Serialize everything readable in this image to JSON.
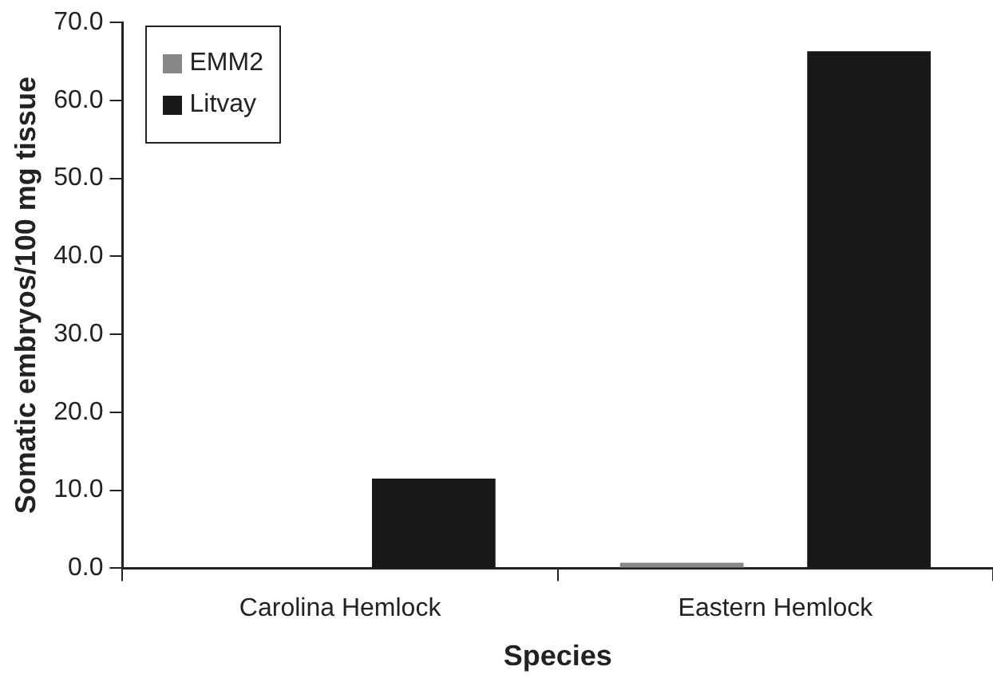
{
  "chart_data": {
    "type": "bar",
    "xlabel": "Species",
    "ylabel": "Somatic embryos/100 mg tissue",
    "categories": [
      "Carolina Hemlock",
      "Eastern Hemlock"
    ],
    "series": [
      {
        "name": "EMM2",
        "color": "#888888",
        "values": [
          0,
          0.7
        ]
      },
      {
        "name": "Litvay",
        "color": "#181818",
        "values": [
          11.5,
          66.3
        ]
      }
    ],
    "ylim": [
      0,
      70
    ],
    "yticks": [
      {
        "value": 0,
        "label": "0.0"
      },
      {
        "value": 10,
        "label": "10.0"
      },
      {
        "value": 20,
        "label": "20.0"
      },
      {
        "value": 30,
        "label": "30.0"
      },
      {
        "value": 40,
        "label": "40.0"
      },
      {
        "value": 50,
        "label": "50.0"
      },
      {
        "value": 60,
        "label": "60.0"
      },
      {
        "value": 70,
        "label": "70.0"
      }
    ],
    "grid": false,
    "legend": "top left"
  }
}
